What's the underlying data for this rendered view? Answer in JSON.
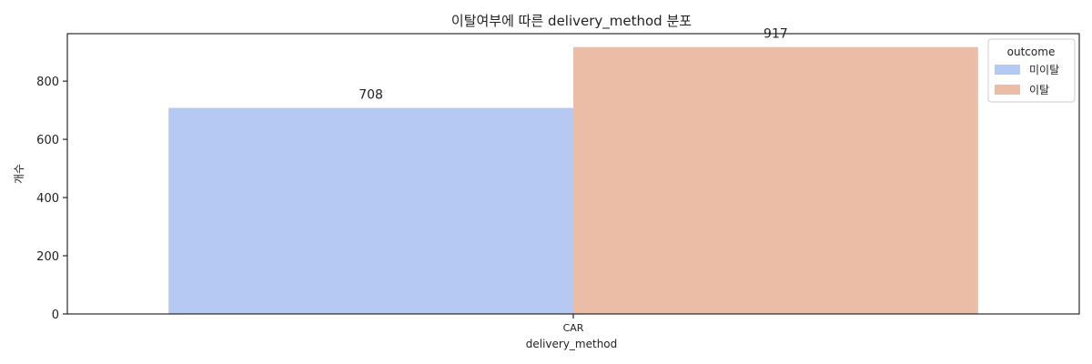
{
  "chart_data": {
    "type": "bar",
    "title": "이탈여부에 따른 delivery_method 분포",
    "xlabel": "delivery_method",
    "ylabel": "개수",
    "categories": [
      "CAR"
    ],
    "series": [
      {
        "name": "미이탈",
        "values": [
          708
        ],
        "color": "#b6c9f3"
      },
      {
        "name": "이탈",
        "values": [
          917
        ],
        "color": "#ebbca6"
      }
    ],
    "ylim": [
      0,
      963
    ],
    "yticks": [
      0,
      200,
      400,
      600,
      800
    ],
    "legend": {
      "title": "outcome",
      "placement": "top-right"
    },
    "grid": false
  }
}
